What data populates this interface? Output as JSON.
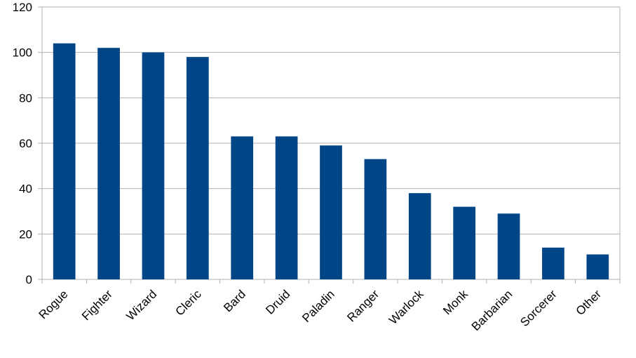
{
  "chart_data": {
    "type": "bar",
    "title": "",
    "xlabel": "",
    "ylabel": "",
    "categories": [
      "Rogue",
      "Fighter",
      "Wizard",
      "Cleric",
      "Bard",
      "Druid",
      "Paladin",
      "Ranger",
      "Warlock",
      "Monk",
      "Barbarian",
      "Sorcerer",
      "Other"
    ],
    "values": [
      104,
      102,
      100,
      98,
      63,
      63,
      59,
      53,
      38,
      32,
      29,
      14,
      11
    ],
    "ylim": [
      0,
      120
    ],
    "yticks": [
      "0",
      "20",
      "40",
      "60",
      "80",
      "100",
      "120"
    ],
    "grid": true,
    "legend": "none",
    "bar_color": "#004586",
    "grid_color": "#b3b3b3"
  }
}
